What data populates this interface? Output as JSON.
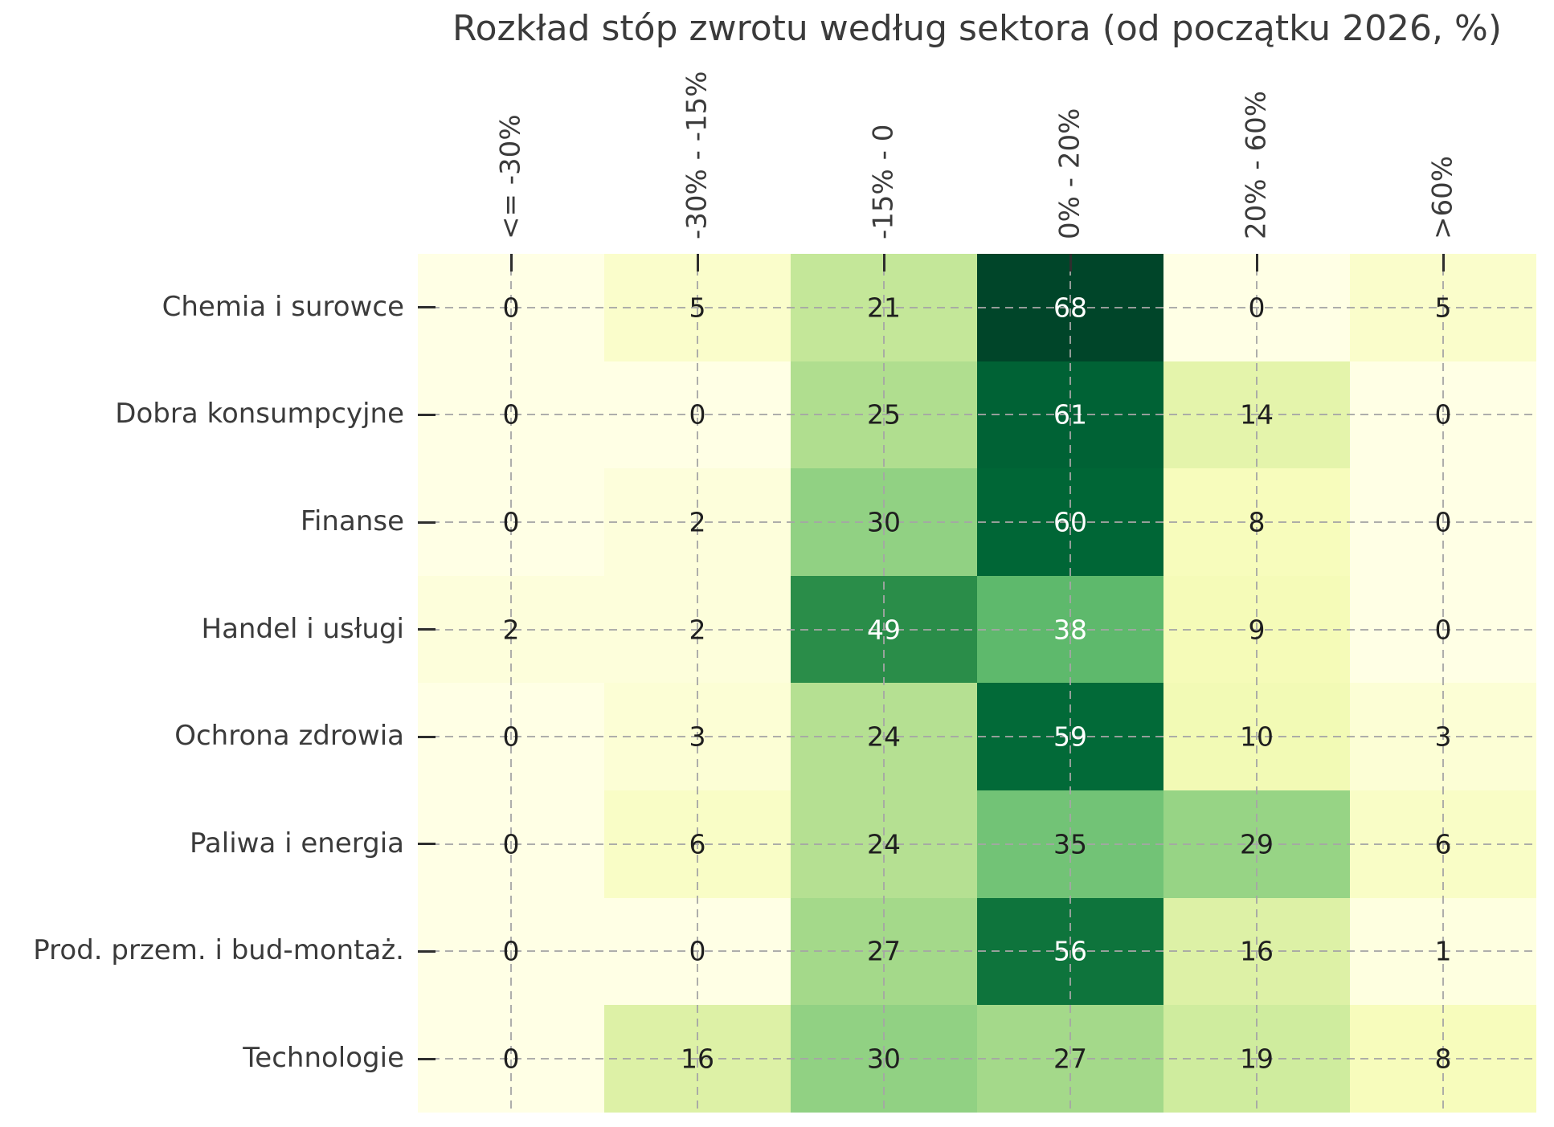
{
  "chart_data": {
    "type": "heatmap",
    "title": "Rozkład stóp zwrotu według sektora (od początku 2026, %)",
    "columns": [
      "<= -30%",
      "-30% - -15%",
      "-15% - 0",
      "0% - 20%",
      "20% - 60%",
      ">60%"
    ],
    "rows": [
      "Chemia i surowce",
      "Dobra konsumpcyjne",
      "Finanse",
      "Handel i usługi",
      "Ochrona zdrowia",
      "Paliwa i energia",
      "Prod. przem. i bud-montaż.",
      "Technologie"
    ],
    "values": [
      [
        0,
        5,
        21,
        68,
        0,
        5
      ],
      [
        0,
        0,
        25,
        61,
        14,
        0
      ],
      [
        0,
        2,
        30,
        60,
        8,
        0
      ],
      [
        2,
        2,
        49,
        38,
        9,
        0
      ],
      [
        0,
        3,
        24,
        59,
        10,
        3
      ],
      [
        0,
        6,
        24,
        35,
        29,
        6
      ],
      [
        0,
        0,
        27,
        56,
        16,
        1
      ],
      [
        0,
        16,
        30,
        27,
        19,
        8
      ]
    ],
    "colormap": {
      "name": "YlGn",
      "stops": [
        "#ffffe5",
        "#f7fcb9",
        "#d9f0a3",
        "#addd8e",
        "#78c679",
        "#41ab5d",
        "#238443",
        "#006837",
        "#004529"
      ],
      "vmin": 0,
      "vmax": 68
    },
    "annotation_dark_color": "#1f1f1f",
    "annotation_light_color": "#ffffff",
    "white_text_min_value": 37,
    "axis_text_color": "#3b3b3b",
    "grid": "dashed",
    "legend_position": "none",
    "xlabel": "",
    "ylabel": ""
  }
}
